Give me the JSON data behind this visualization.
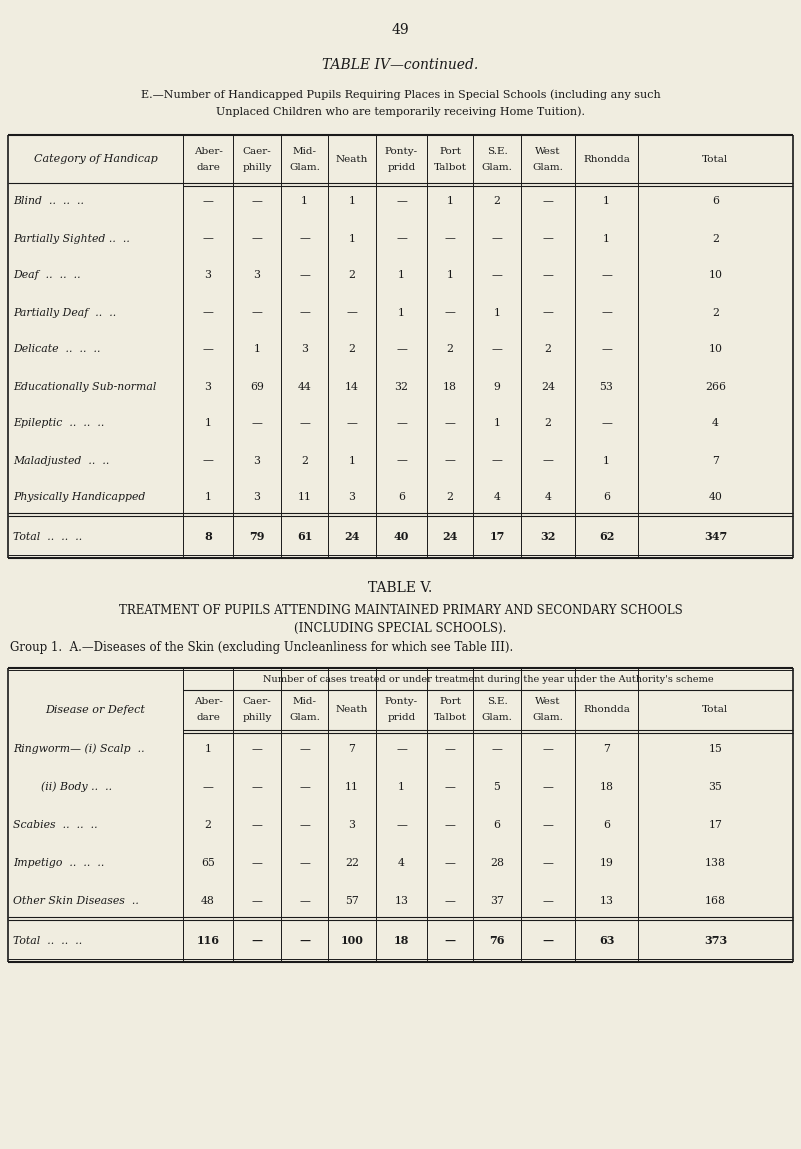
{
  "page_number": "49",
  "bg_color": "#f0ede0",
  "table4_title": "TABLE IV—continued.",
  "table4_subtitle_line1": "E.—Number of Handicapped Pupils Requiring Places in Special Schools (including any such",
  "table4_subtitle_line2": "Unplaced Children who are temporarily receiving Home Tuition).",
  "table4_col_headers": [
    "Aber-\ndare",
    "Caer-\nphilly",
    "Mid-\nGlam.",
    "Neath",
    "Ponty-\npridd",
    "Port\nTalbot",
    "S.E.\nGlam.",
    "West\nGlam.",
    "Rhondda",
    "Total"
  ],
  "table4_row_header": "Category of Handicap",
  "table4_rows": [
    [
      "Blind  ..  ..  ..",
      "—",
      "—",
      "1",
      "1",
      "—",
      "1",
      "2",
      "—",
      "1",
      "6"
    ],
    [
      "Partially Sighted ..  ..",
      "—",
      "—",
      "—",
      "1",
      "—",
      "—",
      "—",
      "—",
      "1",
      "2"
    ],
    [
      "Deaf  ..  ..  ..",
      "3",
      "3",
      "—",
      "2",
      "1",
      "1",
      "—",
      "—",
      "—",
      "10"
    ],
    [
      "Partially Deaf  ..  ..",
      "—",
      "—",
      "—",
      "—",
      "1",
      "—",
      "1",
      "—",
      "—",
      "2"
    ],
    [
      "Delicate  ..  ..  ..",
      "—",
      "1",
      "3",
      "2",
      "—",
      "2",
      "—",
      "2",
      "—",
      "10"
    ],
    [
      "Educationally Sub-normal",
      "3",
      "69",
      "44",
      "14",
      "32",
      "18",
      "9",
      "24",
      "53",
      "266"
    ],
    [
      "Epileptic  ..  ..  ..",
      "1",
      "—",
      "—",
      "—",
      "—",
      "—",
      "1",
      "2",
      "—",
      "4"
    ],
    [
      "Maladjusted  ..  ..",
      "—",
      "3",
      "2",
      "1",
      "—",
      "—",
      "—",
      "—",
      "1",
      "7"
    ],
    [
      "Physically Handicapped",
      "1",
      "3",
      "11",
      "3",
      "6",
      "2",
      "4",
      "4",
      "6",
      "40"
    ]
  ],
  "table4_total_row": [
    "Total  ..  ..  ..",
    "8",
    "79",
    "61",
    "24",
    "40",
    "24",
    "17",
    "32",
    "62",
    "347"
  ],
  "table5_title": "TABLE V.",
  "table5_subtitle_line1": "REATMENT OF PUPILS ATTENDING MAINTAINED PRIMARY AND SECONDARY SCHOOLS",
  "table5_subtitle_line2": "(INCLUDING SPECIAL SCHOOLS).",
  "table5_group": "Group 1.  A.—Diseases of the Skin (excluding Uncleanliness for which see Table III).",
  "table5_col_headers": [
    "Aber-\ndare",
    "Caer-\nphilly",
    "Mid-\nGlam.",
    "Neath",
    "Ponty-\npridd",
    "Port\nTalbot",
    "S.E.\nGlam.",
    "West\nGlam.",
    "Rhondda",
    "Total"
  ],
  "table5_row_header": "Disease or Defect",
  "table5_super_header": "Number of cases treated or under treatment during the year under the Authority's scheme",
  "table5_rows": [
    [
      "Ringworm— (i) Scalp  ..",
      "1",
      "—",
      "—",
      "7",
      "—",
      "—",
      "—",
      "—",
      "7",
      "15"
    ],
    [
      "        (ii) Body ..  ..",
      "—",
      "—",
      "—",
      "11",
      "1",
      "—",
      "5",
      "—",
      "18",
      "35"
    ],
    [
      "Scabies  ..  ..  ..",
      "2",
      "—",
      "—",
      "3",
      "—",
      "—",
      "6",
      "—",
      "6",
      "17"
    ],
    [
      "Impetigo  ..  ..  ..",
      "65",
      "—",
      "—",
      "22",
      "4",
      "—",
      "28",
      "—",
      "19",
      "138"
    ],
    [
      "Other Skin Diseases  ..",
      "48",
      "—",
      "—",
      "57",
      "13",
      "—",
      "37",
      "—",
      "13",
      "168"
    ]
  ],
  "table5_total_row": [
    "Total  ..  ..  ..",
    "116",
    "—",
    "—",
    "100",
    "18",
    "—",
    "76",
    "—",
    "63",
    "373"
  ],
  "col_positions": [
    8,
    183,
    233,
    281,
    328,
    376,
    427,
    473,
    521,
    575,
    638,
    793
  ]
}
